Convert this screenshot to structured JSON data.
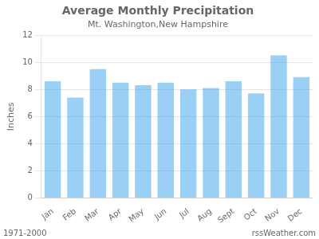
{
  "chart_data": {
    "type": "bar",
    "title": "Average Monthly Precipitation",
    "subtitle": "Mt. Washington,New Hampshire",
    "ylabel": "Inches",
    "annotations": [
      "1971-2000",
      "rssWeather.com"
    ],
    "categories": [
      "Jan",
      "Feb",
      "Mar",
      "Apr",
      "May",
      "Jun",
      "Jul",
      "Aug",
      "Sept",
      "Oct",
      "Nov",
      "Dec"
    ],
    "values": [
      8.6,
      7.4,
      9.5,
      8.5,
      8.3,
      8.5,
      8.0,
      8.1,
      8.6,
      7.7,
      10.5,
      8.9
    ],
    "ylim": [
      0,
      12
    ],
    "yticks": [
      0,
      2,
      4,
      6,
      8,
      10,
      12
    ],
    "grid": true
  }
}
